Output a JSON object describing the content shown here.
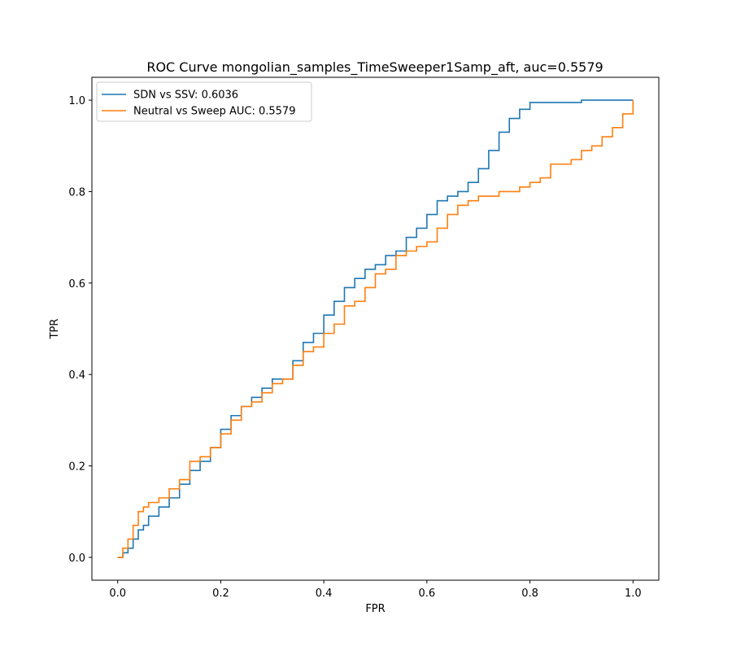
{
  "chart_data": {
    "type": "line",
    "title": "ROC Curve mongolian_samples_TimeSweeper1Samp_aft, auc=0.5579",
    "xlabel": "FPR",
    "ylabel": "TPR",
    "xlim": [
      -0.05,
      1.05
    ],
    "ylim": [
      -0.05,
      1.05
    ],
    "xticks": [
      0.0,
      0.2,
      0.4,
      0.6,
      0.8,
      1.0
    ],
    "yticks": [
      0.0,
      0.2,
      0.4,
      0.6,
      0.8,
      1.0
    ],
    "xtick_labels": [
      "0.0",
      "0.2",
      "0.4",
      "0.6",
      "0.8",
      "1.0"
    ],
    "ytick_labels": [
      "0.0",
      "0.2",
      "0.4",
      "0.6",
      "0.8",
      "1.0"
    ],
    "grid": false,
    "legend_position": "top-left",
    "series": [
      {
        "name": "SDN vs SSV: 0.6036",
        "color": "#1f77b4",
        "x": [
          0.0,
          0.01,
          0.02,
          0.03,
          0.04,
          0.05,
          0.06,
          0.08,
          0.1,
          0.12,
          0.14,
          0.16,
          0.18,
          0.2,
          0.22,
          0.24,
          0.26,
          0.28,
          0.3,
          0.32,
          0.34,
          0.36,
          0.38,
          0.4,
          0.42,
          0.44,
          0.46,
          0.48,
          0.5,
          0.52,
          0.54,
          0.56,
          0.58,
          0.6,
          0.62,
          0.64,
          0.66,
          0.68,
          0.7,
          0.72,
          0.74,
          0.76,
          0.78,
          0.8,
          0.85,
          0.9,
          0.95,
          1.0
        ],
        "y": [
          0.0,
          0.01,
          0.02,
          0.04,
          0.06,
          0.07,
          0.09,
          0.11,
          0.13,
          0.16,
          0.19,
          0.21,
          0.24,
          0.28,
          0.31,
          0.33,
          0.35,
          0.37,
          0.39,
          0.39,
          0.43,
          0.47,
          0.49,
          0.53,
          0.56,
          0.59,
          0.61,
          0.63,
          0.64,
          0.66,
          0.67,
          0.7,
          0.72,
          0.75,
          0.78,
          0.79,
          0.8,
          0.82,
          0.85,
          0.89,
          0.93,
          0.96,
          0.98,
          0.995,
          0.995,
          1.0,
          1.0,
          1.0
        ]
      },
      {
        "name": "Neutral vs Sweep AUC: 0.5579",
        "color": "#ff7f0e",
        "x": [
          0.0,
          0.01,
          0.02,
          0.03,
          0.04,
          0.05,
          0.06,
          0.08,
          0.1,
          0.12,
          0.14,
          0.16,
          0.18,
          0.2,
          0.22,
          0.24,
          0.26,
          0.28,
          0.3,
          0.32,
          0.34,
          0.36,
          0.38,
          0.4,
          0.42,
          0.44,
          0.46,
          0.48,
          0.5,
          0.52,
          0.54,
          0.56,
          0.58,
          0.6,
          0.62,
          0.64,
          0.66,
          0.68,
          0.7,
          0.72,
          0.74,
          0.76,
          0.78,
          0.8,
          0.82,
          0.84,
          0.86,
          0.88,
          0.9,
          0.92,
          0.94,
          0.96,
          0.98,
          1.0
        ],
        "y": [
          0.0,
          0.02,
          0.04,
          0.07,
          0.1,
          0.11,
          0.12,
          0.13,
          0.15,
          0.17,
          0.21,
          0.22,
          0.24,
          0.27,
          0.3,
          0.33,
          0.34,
          0.36,
          0.38,
          0.39,
          0.42,
          0.45,
          0.46,
          0.49,
          0.51,
          0.55,
          0.56,
          0.59,
          0.62,
          0.63,
          0.66,
          0.67,
          0.68,
          0.69,
          0.72,
          0.75,
          0.77,
          0.78,
          0.79,
          0.79,
          0.8,
          0.8,
          0.81,
          0.82,
          0.83,
          0.86,
          0.86,
          0.87,
          0.89,
          0.9,
          0.92,
          0.94,
          0.97,
          1.0
        ]
      }
    ]
  }
}
